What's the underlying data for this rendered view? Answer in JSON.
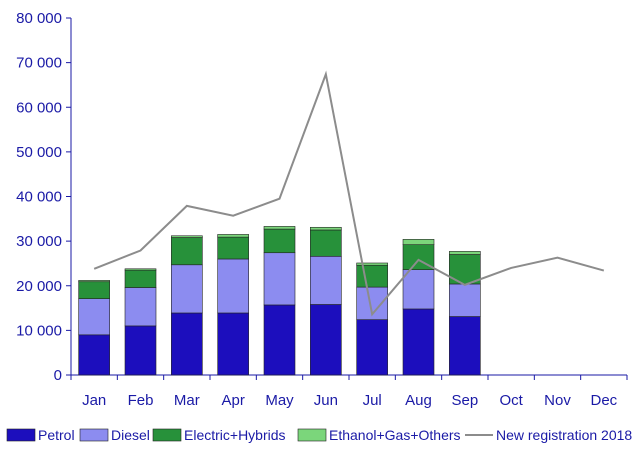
{
  "chart_data": {
    "type": "bar",
    "stacked": true,
    "categories": [
      "Jan",
      "Feb",
      "Mar",
      "Apr",
      "May",
      "Jun",
      "Jul",
      "Aug",
      "Sep",
      "Oct",
      "Nov",
      "Dec"
    ],
    "ylim": [
      0,
      80000
    ],
    "yticks": [
      0,
      10000,
      20000,
      30000,
      40000,
      50000,
      60000,
      70000,
      80000
    ],
    "ytick_labels": [
      "0",
      "10 000",
      "20 000",
      "30 000",
      "40 000",
      "50 000",
      "60 000",
      "70 000",
      "80 000"
    ],
    "grid": false,
    "legend_position": "bottom",
    "series": [
      {
        "name": "Petrol",
        "type": "bar",
        "color": "#1c0ebd",
        "values": [
          9000,
          11000,
          13900,
          13900,
          15700,
          15800,
          12400,
          14800,
          13100,
          null,
          null,
          null
        ]
      },
      {
        "name": "Diesel",
        "type": "bar",
        "color": "#8c8cf0",
        "values": [
          8100,
          8600,
          10800,
          12100,
          11700,
          10800,
          7300,
          8800,
          7300,
          null,
          null,
          null
        ]
      },
      {
        "name": "Electric+Hybrids",
        "type": "bar",
        "color": "#27913a",
        "values": [
          3800,
          3900,
          6100,
          4900,
          5300,
          5900,
          4900,
          5600,
          6600,
          null,
          null,
          null
        ]
      },
      {
        "name": "Ethanol+Gas+Others",
        "type": "bar",
        "color": "#7bd67b",
        "values": [
          300,
          300,
          400,
          600,
          600,
          600,
          500,
          1200,
          700,
          null,
          null,
          null
        ]
      },
      {
        "name": "New registration 2018",
        "type": "line",
        "color": "#8c8c8c",
        "values": [
          23800,
          27900,
          37900,
          35700,
          39500,
          67400,
          13600,
          25800,
          20200,
          24000,
          26300,
          23400
        ]
      }
    ]
  }
}
